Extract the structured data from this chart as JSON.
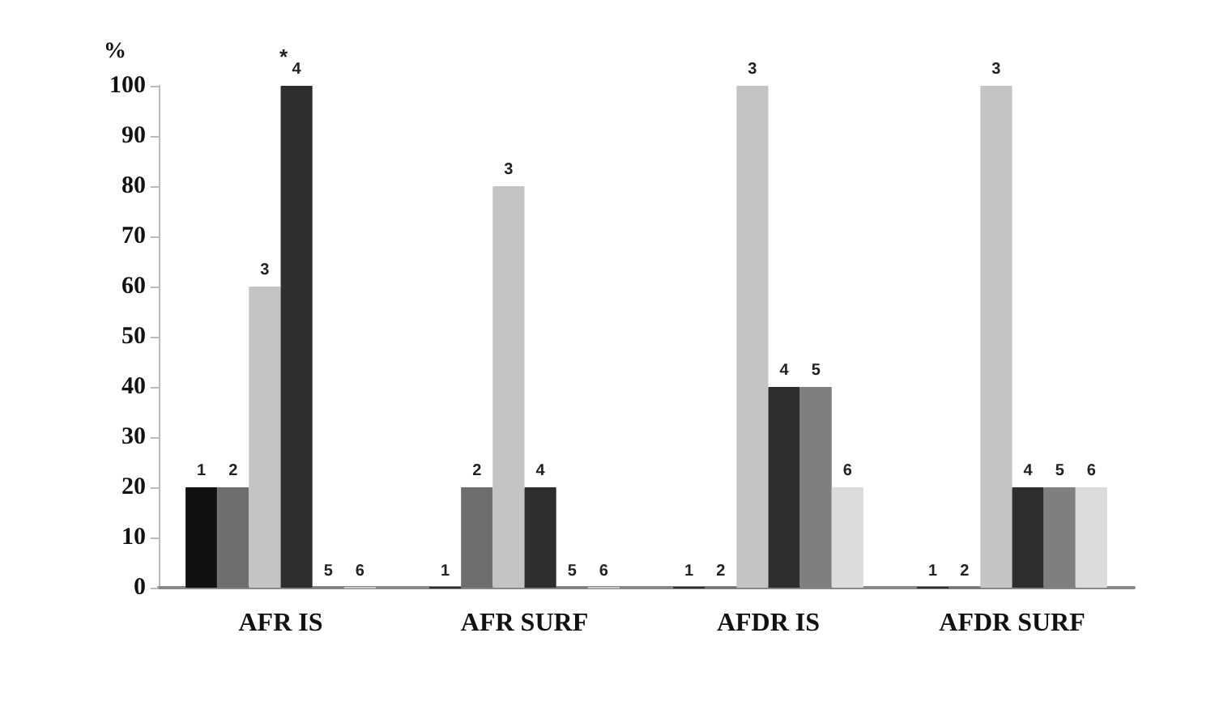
{
  "chart_data": {
    "type": "bar",
    "ylabel": "%",
    "categories": [
      "AFR IS",
      "AFR SURF",
      "AFDR IS",
      "AFDR SURF"
    ],
    "series": [
      {
        "name": "1",
        "color": "#111111",
        "values": [
          20,
          0,
          0,
          0
        ]
      },
      {
        "name": "2",
        "color": "#6e6e6e",
        "values": [
          20,
          20,
          0,
          0
        ]
      },
      {
        "name": "3",
        "color": "#c4c4c4",
        "values": [
          60,
          80,
          100,
          100
        ]
      },
      {
        "name": "4",
        "color": "#2e2e2e",
        "values": [
          100,
          20,
          40,
          20
        ]
      },
      {
        "name": "5",
        "color": "#7f7f7f",
        "values": [
          0,
          0,
          40,
          20
        ]
      },
      {
        "name": "6",
        "color": "#dcdcdc",
        "values": [
          0,
          0,
          20,
          20
        ]
      }
    ],
    "annotations": [
      {
        "text": "*",
        "x": "AFR IS",
        "y": 100
      }
    ],
    "ylim": [
      0,
      100
    ],
    "yticks": [
      0,
      10,
      20,
      30,
      40,
      50,
      60,
      70,
      80,
      90,
      100
    ],
    "grid": false,
    "legend": false
  }
}
